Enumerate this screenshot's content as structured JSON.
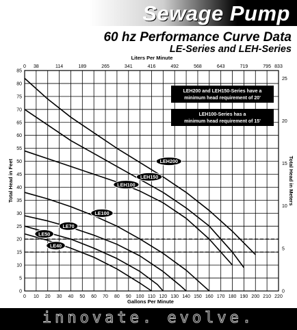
{
  "header": {
    "title": "Sewage Pump",
    "subtitle": "60 hz Performance Curve Data",
    "series_line": "LE-Series and LEH-Series"
  },
  "footer": {
    "tagline": "innovate. evolve."
  },
  "colors": {
    "ink": "#000000",
    "box_fill": "#000000",
    "box_text": "#ffffff"
  },
  "notes": [
    {
      "lines": [
        "LEH200 and LEH150-Series have a",
        "minimum head requirement of 20'"
      ]
    },
    {
      "lines": [
        "LEH100-Series has a",
        "minimum head requirement of 15'"
      ]
    }
  ],
  "chart_data": {
    "type": "line",
    "title": "",
    "xlabel": "Gallons Per Minute",
    "x2label": "Liters Per Minute",
    "ylabel": "Total Head in Feet",
    "y2label": "Total Head in Meters",
    "xlim": [
      0,
      220
    ],
    "ylim": [
      0,
      85
    ],
    "x_ticks": [
      0,
      10,
      20,
      30,
      40,
      50,
      60,
      70,
      80,
      90,
      100,
      110,
      120,
      130,
      140,
      150,
      160,
      170,
      180,
      190,
      200,
      210,
      220
    ],
    "y_ticks": [
      0,
      5,
      10,
      15,
      20,
      25,
      30,
      35,
      40,
      45,
      50,
      55,
      60,
      65,
      70,
      75,
      80,
      85
    ],
    "x2_ticks": [
      {
        "label": "0",
        "gpm": 0
      },
      {
        "label": "38",
        "gpm": 10
      },
      {
        "label": "114",
        "gpm": 30
      },
      {
        "label": "189",
        "gpm": 50
      },
      {
        "label": "265",
        "gpm": 70
      },
      {
        "label": "341",
        "gpm": 90
      },
      {
        "label": "416",
        "gpm": 110
      },
      {
        "label": "492",
        "gpm": 130
      },
      {
        "label": "568",
        "gpm": 150
      },
      {
        "label": "643",
        "gpm": 170
      },
      {
        "label": "719",
        "gpm": 190
      },
      {
        "label": "795",
        "gpm": 210
      },
      {
        "label": "833",
        "gpm": 220
      }
    ],
    "y2_ticks": [
      {
        "label": "0",
        "ft": 0
      },
      {
        "label": "5",
        "ft": 16.4
      },
      {
        "label": "10",
        "ft": 32.8
      },
      {
        "label": "15",
        "ft": 49.2
      },
      {
        "label": "20",
        "ft": 65.6
      },
      {
        "label": "25",
        "ft": 82
      }
    ],
    "grid": true,
    "reference_lines": [
      {
        "y": 20,
        "style": "dashed"
      },
      {
        "y": 15,
        "style": "dashed"
      }
    ],
    "series": [
      {
        "name": "LEH200",
        "label_at": [
          125,
          50
        ],
        "x": [
          0,
          20,
          40,
          60,
          80,
          100,
          120,
          140,
          160,
          180,
          200
        ],
        "y": [
          82,
          74,
          67,
          61,
          55,
          49.5,
          44,
          38,
          31,
          23,
          14
        ]
      },
      {
        "name": "LEH150",
        "label_at": [
          108,
          44
        ],
        "x": [
          0,
          20,
          40,
          60,
          80,
          100,
          120,
          140,
          160,
          180,
          190
        ],
        "y": [
          70,
          64,
          58,
          53,
          48,
          43,
          38,
          32,
          25,
          15,
          9
        ]
      },
      {
        "name": "LEH100",
        "label_at": [
          88,
          41
        ],
        "x": [
          0,
          20,
          40,
          60,
          80,
          100,
          120,
          140,
          160,
          180
        ],
        "y": [
          54,
          51,
          48,
          45,
          42,
          38.5,
          34,
          28,
          20,
          10
        ]
      },
      {
        "name": "LE100",
        "label_at": [
          67,
          30
        ],
        "x": [
          0,
          20,
          40,
          60,
          80,
          100,
          120,
          140,
          155,
          160
        ],
        "y": [
          38,
          35.5,
          32.5,
          29,
          25,
          20,
          14.5,
          8,
          2,
          0
        ]
      },
      {
        "name": "LE70",
        "label_at": [
          38,
          25
        ],
        "x": [
          0,
          20,
          40,
          60,
          80,
          100,
          120,
          135,
          140
        ],
        "y": [
          29,
          27,
          24.5,
          21.5,
          18,
          13.5,
          7.5,
          2,
          0
        ]
      },
      {
        "name": "LE50",
        "label_at": [
          17,
          22
        ],
        "x": [
          0,
          20,
          40,
          60,
          80,
          100,
          115,
          120
        ],
        "y": [
          25,
          22.5,
          20,
          16.5,
          12.5,
          7.5,
          2.5,
          0
        ]
      },
      {
        "name": "LE40",
        "label_at": [
          27,
          17.5
        ],
        "x": [
          0,
          20,
          40,
          60,
          80,
          100,
          110
        ],
        "y": [
          22,
          19.5,
          16.5,
          13,
          8.5,
          3,
          0
        ]
      }
    ]
  }
}
